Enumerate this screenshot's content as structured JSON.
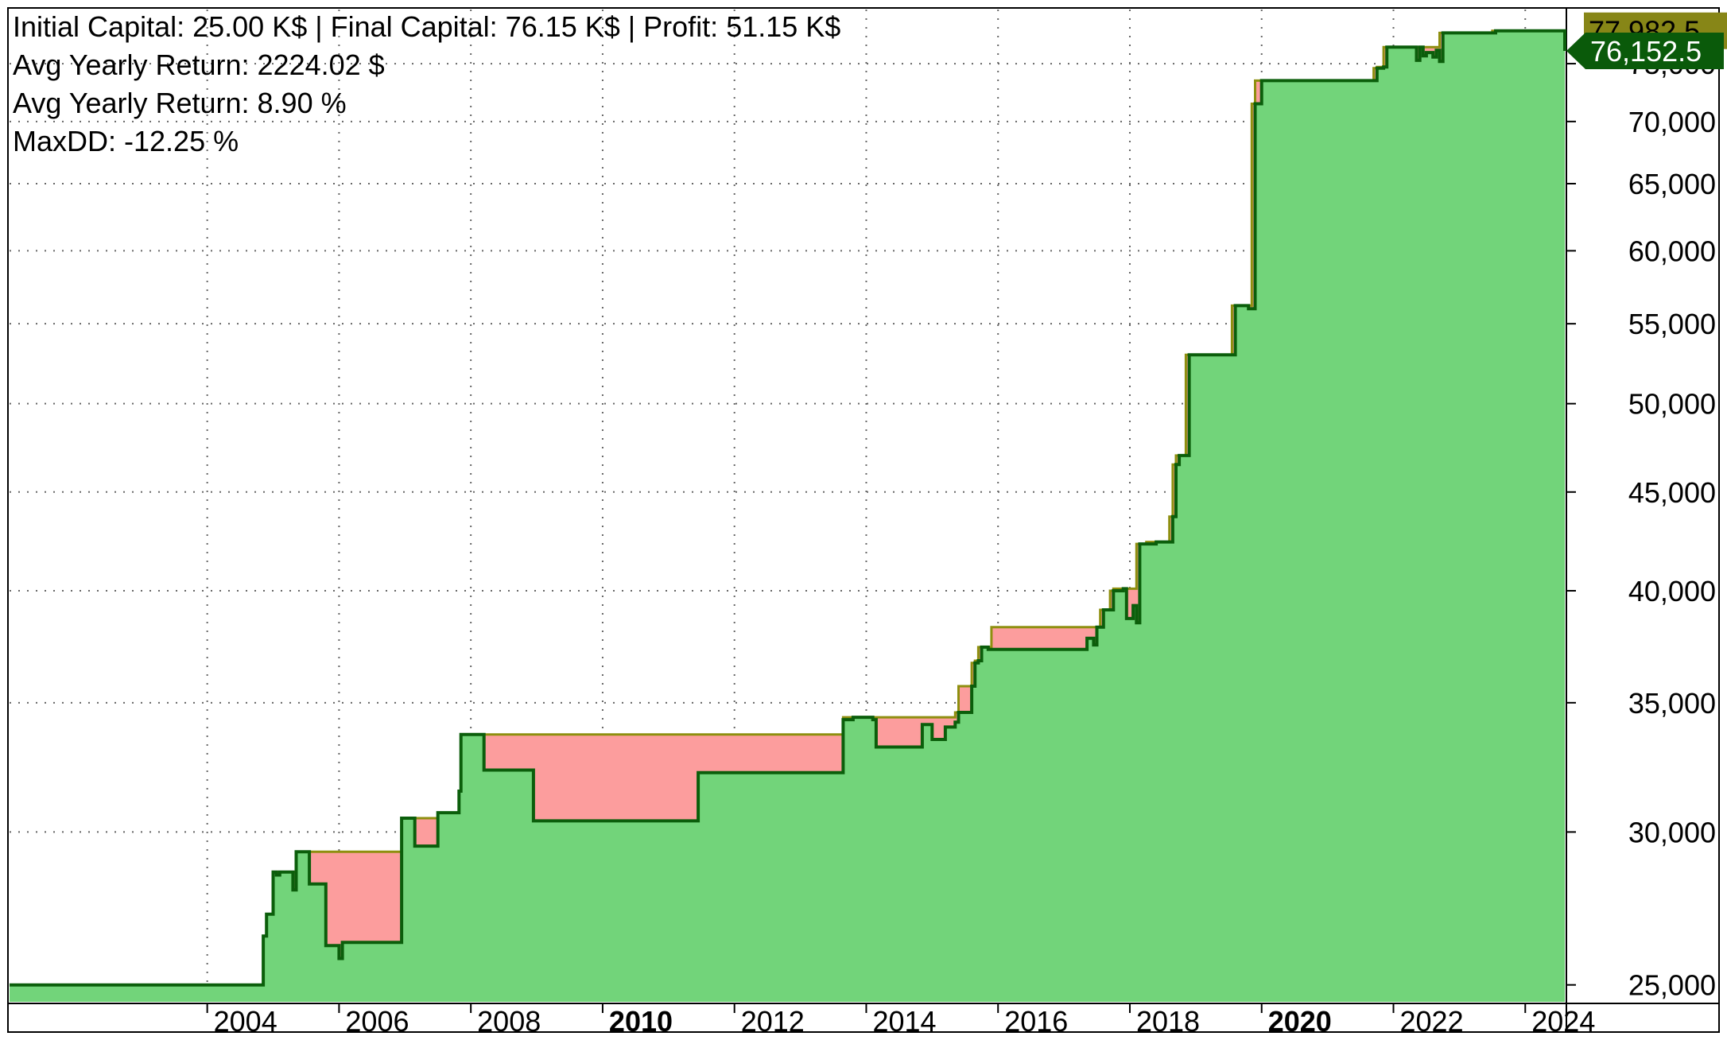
{
  "stats": {
    "line1": "Initial Capital: 25.00 K$ | Final Capital: 76.15 K$ | Profit: 51.15 K$",
    "line2": "Avg Yearly Return: 2224.02 $",
    "line3": "Avg Yearly Return: 8.90 %",
    "line4": "MaxDD: -12.25 %"
  },
  "chart_data": {
    "type": "area",
    "yscale": "log",
    "ylim": [
      24500,
      80000
    ],
    "xlim": [
      2001.0,
      2024.6
    ],
    "y_ticks": [
      "25,000",
      "30,000",
      "35,000",
      "40,000",
      "45,000",
      "50,000",
      "55,000",
      "60,000",
      "65,000",
      "70,000",
      "75,000"
    ],
    "y_tick_values": [
      25000,
      30000,
      35000,
      40000,
      45000,
      50000,
      55000,
      60000,
      65000,
      70000,
      75000
    ],
    "x_ticks": [
      "2004",
      "2006",
      "2008",
      "2010",
      "2012",
      "2014",
      "2016",
      "2018",
      "2020",
      "2022",
      "2024"
    ],
    "x_tick_values": [
      2004,
      2006,
      2008,
      2010,
      2012,
      2014,
      2016,
      2018,
      2020,
      2022,
      2024
    ],
    "x_major_ticks": [
      "2010",
      "2020"
    ],
    "grid": true,
    "colors": {
      "equity_fill": "#72D47A",
      "drawdown_fill": "#FC9D9D",
      "equity_line": "#0B5E0B",
      "peak_line": "#8E8F0F",
      "max_tag": "#878617",
      "last_tag": "#0A5A0A"
    },
    "tags": {
      "max_value": "77,982.5",
      "last_value": "76,152.5"
    },
    "series": [
      {
        "role": "equity",
        "x": [
          2001.0,
          2004.8,
          2004.85,
          2004.9,
          2005.0,
          2005.05,
          2005.1,
          2005.3,
          2005.35,
          2005.55,
          2005.6,
          2005.8,
          2005.85,
          2006.0,
          2006.05,
          2006.6,
          2006.65,
          2006.9,
          2006.95,
          2007.1,
          2007.15,
          2007.45,
          2007.5,
          2007.8,
          2007.82,
          2007.85,
          2007.9,
          2008.2,
          2008.25,
          2008.9,
          2008.95,
          2011.4,
          2011.45,
          2013.6,
          2013.65,
          2013.75,
          2013.8,
          2014.1,
          2014.15,
          2014.35,
          2014.4,
          2014.8,
          2014.85,
          2014.95,
          2015.0,
          2015.1,
          2015.2,
          2015.35,
          2015.4,
          2015.6,
          2015.65,
          2015.7,
          2015.75,
          2015.85,
          2015.9,
          2016.5,
          2016.55,
          2017.3,
          2017.35,
          2017.45,
          2017.5,
          2017.55,
          2017.6,
          2017.7,
          2017.75,
          2017.9,
          2017.95,
          2018.0,
          2018.05,
          2018.1,
          2018.15,
          2018.2,
          2018.25,
          2018.4,
          2018.45,
          2018.6,
          2018.65,
          2018.7,
          2018.75,
          2018.85,
          2018.9,
          2019.35,
          2019.4,
          2019.55,
          2019.6,
          2019.75,
          2019.8,
          2019.85,
          2019.9,
          2020.0,
          2020.05,
          2021.7,
          2021.75,
          2021.85,
          2021.9,
          2022.2,
          2022.25,
          2022.35,
          2022.4,
          2022.45,
          2022.5,
          2022.6,
          2022.65,
          2022.7,
          2022.75,
          2023.5,
          2023.55,
          2024.5,
          2024.55,
          2024.6
        ],
        "y": [
          25000,
          25000,
          26500,
          27200,
          28600,
          28500,
          28600,
          28000,
          29300,
          28200,
          28200,
          26200,
          26200,
          25800,
          26300,
          26300,
          26300,
          26300,
          30500,
          30500,
          29500,
          29500,
          30700,
          30700,
          31500,
          33700,
          33700,
          32300,
          32300,
          32300,
          30400,
          30400,
          32200,
          32200,
          34300,
          34300,
          34400,
          34300,
          33200,
          33200,
          33200,
          33200,
          34100,
          34100,
          33500,
          33500,
          34000,
          34200,
          34600,
          35700,
          36700,
          36800,
          37400,
          37300,
          37300,
          37300,
          37300,
          37300,
          37800,
          37500,
          38300,
          38300,
          39100,
          39100,
          40000,
          40100,
          38700,
          38700,
          39300,
          38500,
          42300,
          42300,
          42300,
          42400,
          42400,
          42400,
          43700,
          46500,
          47000,
          47000,
          53000,
          53000,
          53000,
          53000,
          56200,
          56200,
          56000,
          56000,
          71500,
          73500,
          73500,
          73500,
          74600,
          74700,
          76500,
          76500,
          76500,
          75300,
          76500,
          75700,
          76000,
          75600,
          76200,
          75200,
          77800,
          77800,
          78000,
          78000,
          78000,
          76152
        ]
      },
      {
        "role": "peak",
        "x": [
          2001.0,
          2004.8,
          2004.85,
          2004.9,
          2005.0,
          2005.05,
          2005.1,
          2005.3,
          2005.35,
          2006.9,
          2006.95,
          2007.45,
          2007.5,
          2007.8,
          2007.82,
          2007.85,
          2013.6,
          2013.65,
          2014.8,
          2014.85,
          2015.35,
          2015.4,
          2015.6,
          2015.65,
          2015.7,
          2015.75,
          2015.85,
          2015.9,
          2017.3,
          2017.35,
          2017.45,
          2017.5,
          2017.55,
          2017.6,
          2017.7,
          2017.75,
          2017.9,
          2017.95,
          2018.0,
          2018.05,
          2018.1,
          2018.15,
          2018.2,
          2018.25,
          2018.4,
          2018.45,
          2018.6,
          2018.65,
          2018.7,
          2018.75,
          2018.85,
          2018.9,
          2019.35,
          2019.4,
          2019.55,
          2019.6,
          2019.75,
          2019.8,
          2019.85,
          2019.9,
          2020.0,
          2020.05,
          2021.7,
          2021.75,
          2021.85,
          2021.9,
          2022.2,
          2022.25,
          2022.35,
          2022.4,
          2022.45,
          2022.5,
          2022.6,
          2022.65,
          2022.7,
          2022.75,
          2023.5,
          2023.55,
          2024.5,
          2024.55,
          2024.6
        ],
        "y": [
          25000,
          25000,
          26500,
          27200,
          28600,
          28600,
          28600,
          28600,
          29300,
          29300,
          30500,
          30500,
          30700,
          30700,
          31500,
          33700,
          33700,
          34400,
          34400,
          34400,
          34600,
          35700,
          36700,
          36800,
          37400,
          37400,
          37400,
          38300,
          38300,
          38300,
          38300,
          38300,
          39100,
          39100,
          40000,
          40100,
          40100,
          40100,
          40100,
          40100,
          42300,
          42300,
          42300,
          42400,
          42400,
          42400,
          43700,
          46500,
          47000,
          47000,
          53000,
          53000,
          53000,
          53000,
          56200,
          56200,
          56200,
          56200,
          71500,
          73500,
          73500,
          73500,
          74600,
          74700,
          76500,
          76500,
          76500,
          76500,
          76500,
          76500,
          76500,
          76500,
          76500,
          76500,
          77800,
          77800,
          78000,
          78000,
          78000,
          78000,
          78000
        ]
      }
    ]
  }
}
